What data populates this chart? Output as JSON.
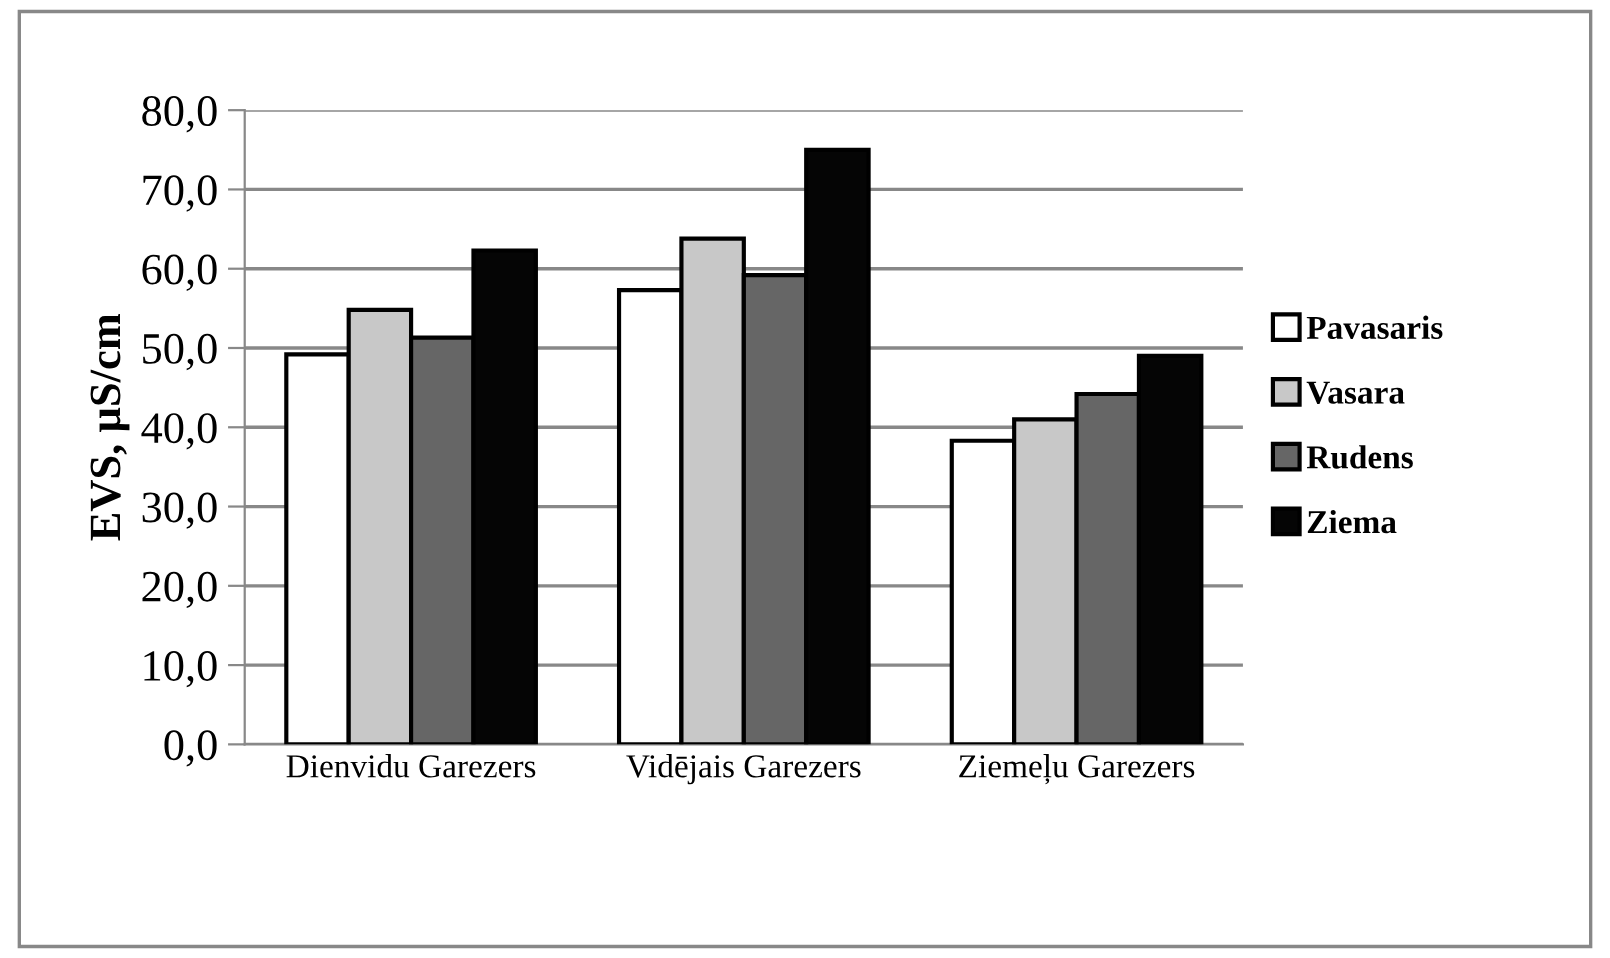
{
  "chart_data": {
    "type": "bar",
    "ylabel": "EVS, µS/cm",
    "categories": [
      "Dienvidu Garezers",
      "Vidējais Garezers",
      "Ziemeļu Garezers"
    ],
    "series": [
      {
        "name": "Pavasaris",
        "color": "#ffffff",
        "values": [
          49.2,
          57.3,
          38.3
        ]
      },
      {
        "name": "Vasara",
        "color": "#c8c8c8",
        "values": [
          54.8,
          63.8,
          41.0
        ]
      },
      {
        "name": "Rudens",
        "color": "#666666",
        "values": [
          51.3,
          59.2,
          44.2
        ]
      },
      {
        "name": "Ziema",
        "color": "#050505",
        "values": [
          62.3,
          75.0,
          49.0
        ]
      }
    ],
    "ylim": [
      0,
      80
    ],
    "yticks": [
      {
        "value": 0,
        "label": "0,0"
      },
      {
        "value": 10,
        "label": "10,0"
      },
      {
        "value": 20,
        "label": "20,0"
      },
      {
        "value": 30,
        "label": "30,0"
      },
      {
        "value": 40,
        "label": "40,0"
      },
      {
        "value": 50,
        "label": "50,0"
      },
      {
        "value": 60,
        "label": "60,0"
      },
      {
        "value": 70,
        "label": "70,0"
      },
      {
        "value": 80,
        "label": "80,0"
      }
    ],
    "grid": "y",
    "legend": "right"
  }
}
